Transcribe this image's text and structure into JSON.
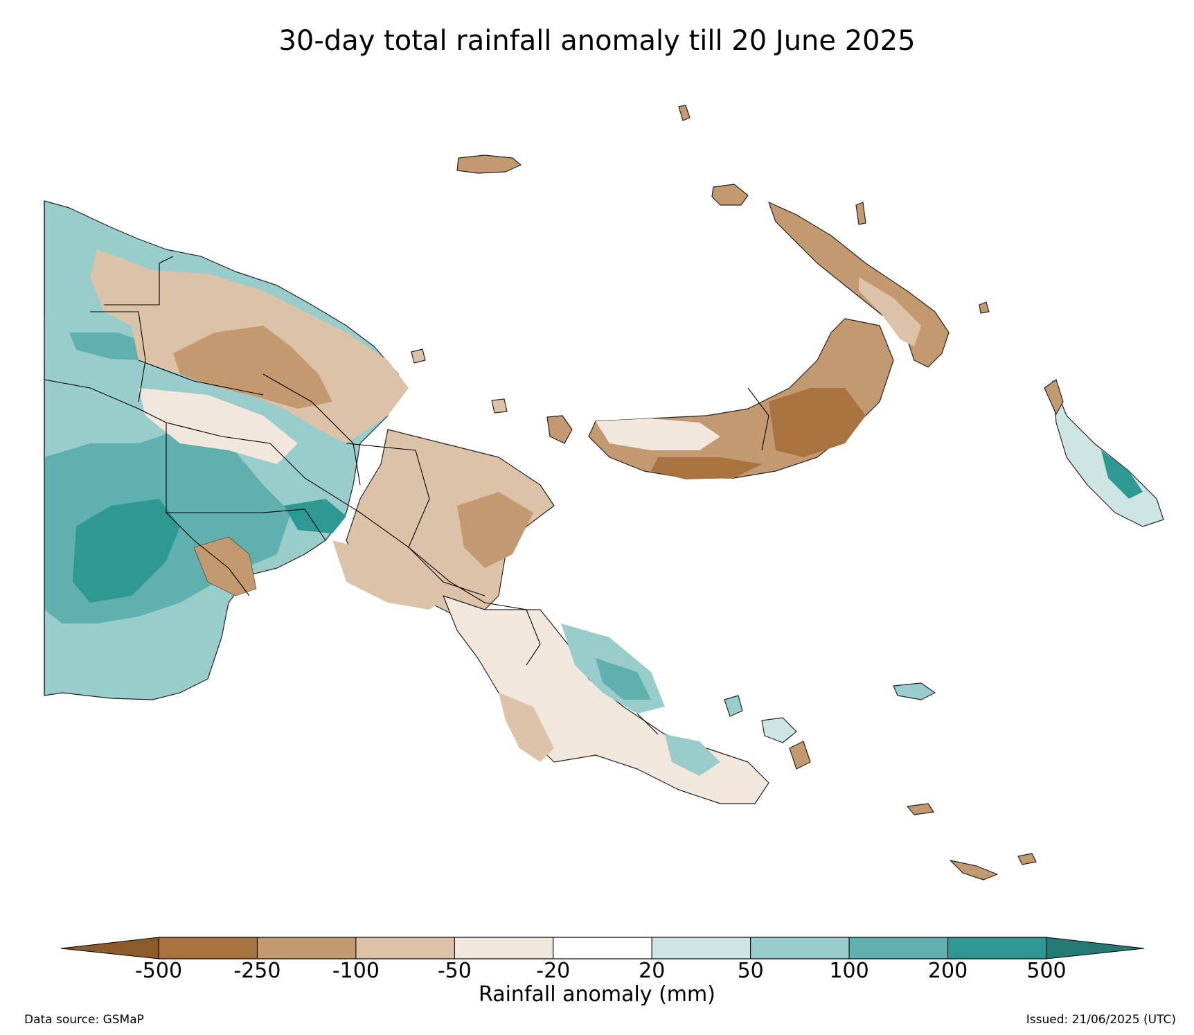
{
  "title": "30-day total rainfall anomaly till 20 June 2025",
  "legend": {
    "label": "Rainfall anomaly (mm)",
    "ticks": [
      "-500",
      "-250",
      "-100",
      "-50",
      "-20",
      "20",
      "50",
      "100",
      "200",
      "500"
    ],
    "bins": [
      {
        "range": "< -500",
        "color": "#8c5a2b"
      },
      {
        "range": "-500 to -250",
        "color": "#a8733f"
      },
      {
        "range": "-250 to -100",
        "color": "#c39a6f"
      },
      {
        "range": "-100 to -50",
        "color": "#dcc3a8"
      },
      {
        "range": "-50 to -20",
        "color": "#f1e7dd"
      },
      {
        "range": "-20 to 20",
        "color": "#ffffff"
      },
      {
        "range": "20 to 50",
        "color": "#cde6e4"
      },
      {
        "range": "50 to 100",
        "color": "#98cdcb"
      },
      {
        "range": "100 to 200",
        "color": "#5fb0ae"
      },
      {
        "range": "200 to 500",
        "color": "#2e9993"
      },
      {
        "range": "> 500",
        "color": "#267a74"
      }
    ]
  },
  "footer": {
    "source": "Data source: GSMaP",
    "issued": "Issued: 21/06/2025 (UTC)"
  }
}
